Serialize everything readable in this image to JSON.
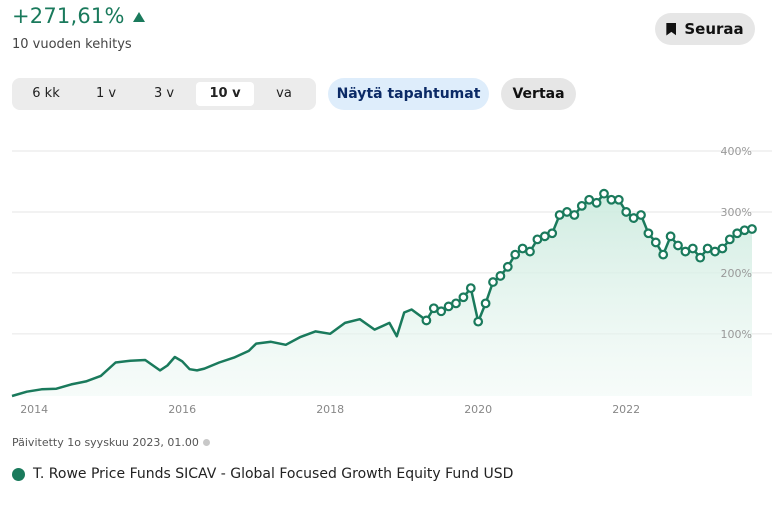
{
  "header": {
    "performance": "+271,61%",
    "trend_icon": "triangle-up-icon",
    "subtitle": "10 vuoden kehitys",
    "follow_label": "Seuraa",
    "follow_icon": "bookmark-icon"
  },
  "periods": {
    "items": [
      "6 kk",
      "1 v",
      "3 v",
      "10 v",
      "va"
    ],
    "active": "10 v"
  },
  "actions": {
    "events_label": "Näytä tapahtumat",
    "compare_label": "Vertaa"
  },
  "updated": "Päivitetty 1o syyskuu 2023, 01.00",
  "colors": {
    "accent": "#1a7a5c",
    "fill": "#d6efe5",
    "grid": "#e6e6e6"
  },
  "chart_data": {
    "type": "area",
    "title": "",
    "xlabel": "",
    "ylabel": "",
    "x_ticks": [
      "2014",
      "2016",
      "2018",
      "2020",
      "2022"
    ],
    "y_ticks": [
      "100%",
      "200%",
      "300%",
      "400%"
    ],
    "xlim": [
      2013.7,
      2023.7
    ],
    "ylim": [
      -2,
      400
    ],
    "grid": "horizontal",
    "legend_position": "bottom-left",
    "series": [
      {
        "name": "T. Rowe Price Funds SICAV - Global Focused Growth Equity Fund USD",
        "x": [
          2013.7,
          2013.9,
          2014.1,
          2014.3,
          2014.5,
          2014.7,
          2014.9,
          2015.1,
          2015.3,
          2015.5,
          2015.7,
          2015.8,
          2015.9,
          2016.0,
          2016.1,
          2016.2,
          2016.3,
          2016.5,
          2016.7,
          2016.9,
          2017.0,
          2017.2,
          2017.4,
          2017.6,
          2017.8,
          2018.0,
          2018.2,
          2018.4,
          2018.6,
          2018.8,
          2018.9,
          2019.0,
          2019.1,
          2019.3,
          2019.4,
          2019.5,
          2019.6,
          2019.7,
          2019.8,
          2019.9,
          2020.0,
          2020.1,
          2020.2,
          2020.3,
          2020.4,
          2020.5,
          2020.6,
          2020.7,
          2020.8,
          2020.9,
          2021.0,
          2021.1,
          2021.2,
          2021.3,
          2021.4,
          2021.5,
          2021.6,
          2021.7,
          2021.8,
          2021.9,
          2022.0,
          2022.1,
          2022.2,
          2022.3,
          2022.4,
          2022.5,
          2022.6,
          2022.7,
          2022.8,
          2022.9,
          2023.0,
          2023.1,
          2023.2,
          2023.3,
          2023.4,
          2023.5,
          2023.6,
          2023.7
        ],
        "values": [
          -2,
          5,
          9,
          10,
          17,
          22,
          31,
          53,
          56,
          57,
          40,
          48,
          62,
          55,
          42,
          40,
          43,
          53,
          61,
          72,
          84,
          87,
          82,
          95,
          104,
          100,
          118,
          124,
          107,
          118,
          96,
          135,
          140,
          122,
          142,
          137,
          145,
          150,
          160,
          175,
          120,
          150,
          185,
          195,
          210,
          230,
          240,
          235,
          255,
          260,
          265,
          295,
          300,
          295,
          310,
          320,
          315,
          330,
          320,
          320,
          300,
          290,
          295,
          265,
          250,
          230,
          260,
          245,
          235,
          240,
          225,
          240,
          235,
          240,
          255,
          265,
          270,
          272
        ],
        "marked_from": 2019.3
      }
    ]
  }
}
